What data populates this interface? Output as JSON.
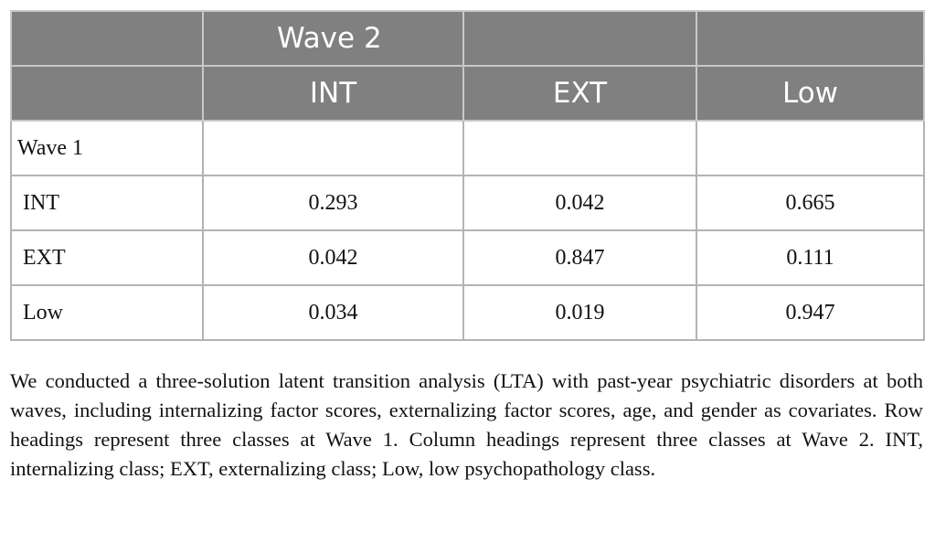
{
  "table": {
    "header": {
      "group": "Wave 2",
      "columns": [
        "INT",
        "EXT",
        "Low"
      ]
    },
    "row_group": "Wave 1",
    "rows": [
      {
        "label": "INT",
        "values": [
          0.293,
          0.042,
          0.665
        ]
      },
      {
        "label": "EXT",
        "values": [
          0.042,
          0.847,
          0.111
        ]
      },
      {
        "label": "Low",
        "values": [
          0.034,
          0.019,
          0.947
        ]
      }
    ]
  },
  "caption": "We conducted a three-solution latent transition analysis (LTA) with past-year psychiatric disorders at both waves, including internalizing factor scores, externalizing factor scores, age, and gender as covariates. Row headings represent three classes at Wave 1. Column headings represent three classes at Wave 2. INT, internalizing class; EXT, externalizing class; Low, low psychopathology class."
}
